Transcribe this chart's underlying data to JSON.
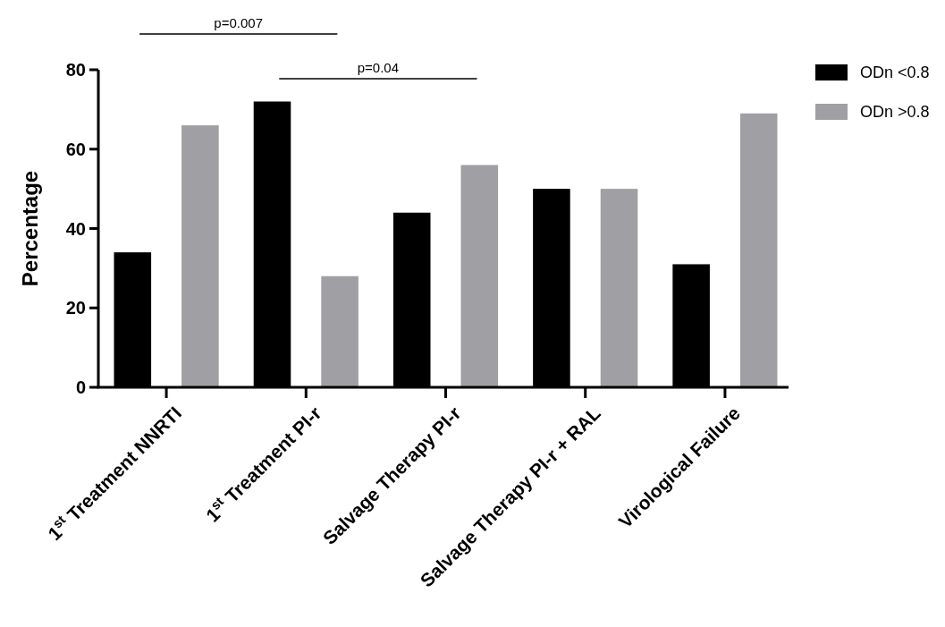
{
  "chart_data": {
    "type": "bar",
    "ylabel": "Percentage",
    "categories": [
      "1$^{st}$ Treatment NNRTI",
      "1$^{st}$ Treatment PI-r",
      "Salvage Therapy PI-r",
      "Salvage Therapy PI-r + RAL",
      "Virological Failure"
    ],
    "series": [
      {
        "name": "ODn <0.8",
        "color": "#000000",
        "values": [
          34,
          72,
          44,
          50,
          31
        ]
      },
      {
        "name": "ODn >0.8",
        "color": "#a0a0a4",
        "values": [
          66,
          28,
          56,
          50,
          69
        ]
      }
    ],
    "ylim": [
      0,
      80
    ],
    "yticks": [
      0,
      20,
      40,
      60,
      80
    ],
    "grid": false,
    "legend": "top right",
    "annotations": [
      "p=0.007",
      "p=0.04"
    ]
  }
}
